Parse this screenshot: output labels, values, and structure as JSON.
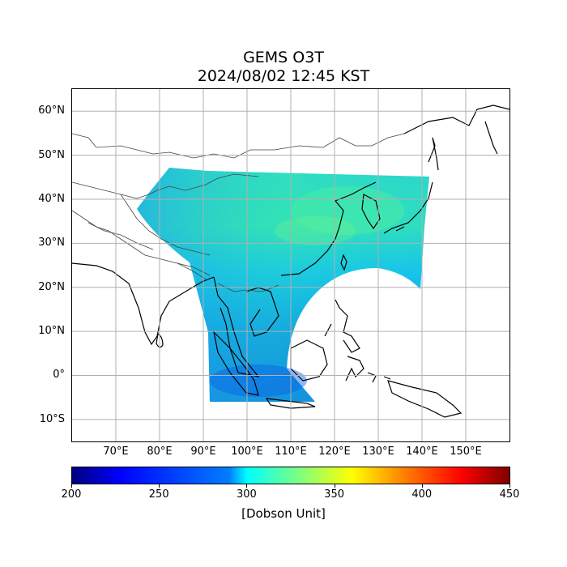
{
  "title": {
    "line1": "GEMS O3T",
    "line2": "2024/08/02 12:45 KST"
  },
  "map": {
    "lon_range": [
      60,
      160
    ],
    "lat_range": [
      -15,
      65
    ],
    "lat_ticks": [
      {
        "value": 60,
        "label": "60°N"
      },
      {
        "value": 50,
        "label": "50°N"
      },
      {
        "value": 40,
        "label": "40°N"
      },
      {
        "value": 30,
        "label": "30°N"
      },
      {
        "value": 20,
        "label": "20°N"
      },
      {
        "value": 10,
        "label": "10°N"
      },
      {
        "value": 0,
        "label": "0°"
      },
      {
        "value": -10,
        "label": "10°S"
      }
    ],
    "lon_ticks": [
      {
        "value": 70,
        "label": "70°E"
      },
      {
        "value": 80,
        "label": "80°E"
      },
      {
        "value": 90,
        "label": "90°E"
      },
      {
        "value": 100,
        "label": "100°E"
      },
      {
        "value": 110,
        "label": "110°E"
      },
      {
        "value": 120,
        "label": "120°E"
      },
      {
        "value": 130,
        "label": "130°E"
      },
      {
        "value": 140,
        "label": "140°E"
      },
      {
        "value": 150,
        "label": "150°E"
      }
    ],
    "gridlines": true,
    "variable": "Total column ozone",
    "colors": {
      "land_outline": "#000000",
      "grid": "#b0b0b0"
    }
  },
  "colorbar": {
    "min": 200,
    "max": 450,
    "colormap": "jet",
    "ticks": [
      "200",
      "250",
      "300",
      "350",
      "400",
      "450"
    ],
    "unit_label": "[Dobson Unit]"
  }
}
